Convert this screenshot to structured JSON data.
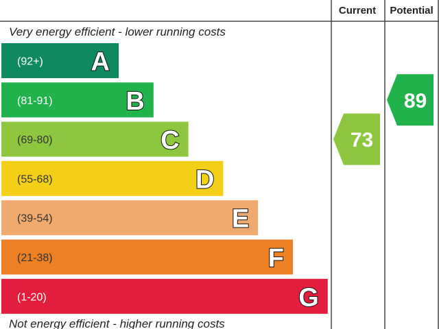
{
  "chart_data": {
    "type": "bar",
    "title": "",
    "header": {
      "current": "Current",
      "potential": "Potential"
    },
    "top_caption": "Very energy efficient - lower running costs",
    "bottom_caption": "Not energy efficient - higher running costs",
    "bands": [
      {
        "letter": "A",
        "range": "(92+)",
        "min": 92,
        "max": 100,
        "color": "#0f8a5f",
        "range_color": "#ffffff"
      },
      {
        "letter": "B",
        "range": "(81-91)",
        "min": 81,
        "max": 91,
        "color": "#22b24c",
        "range_color": "#ffffff"
      },
      {
        "letter": "C",
        "range": "(69-80)",
        "min": 69,
        "max": 80,
        "color": "#8dc63f",
        "range_color": "#333333"
      },
      {
        "letter": "D",
        "range": "(55-68)",
        "min": 55,
        "max": 68,
        "color": "#f4cf18",
        "range_color": "#333333"
      },
      {
        "letter": "E",
        "range": "(39-54)",
        "min": 39,
        "max": 54,
        "color": "#f0aa6e",
        "range_color": "#333333"
      },
      {
        "letter": "F",
        "range": "(21-38)",
        "min": 21,
        "max": 38,
        "color": "#ec8025",
        "range_color": "#333333"
      },
      {
        "letter": "G",
        "range": "(1-20)",
        "min": 1,
        "max": 20,
        "color": "#e31d3c",
        "range_color": "#ffffff"
      }
    ],
    "current": {
      "value": 73,
      "band": "C",
      "color": "#8dc63f"
    },
    "potential": {
      "value": 89,
      "band": "B",
      "color": "#22b24c"
    }
  }
}
